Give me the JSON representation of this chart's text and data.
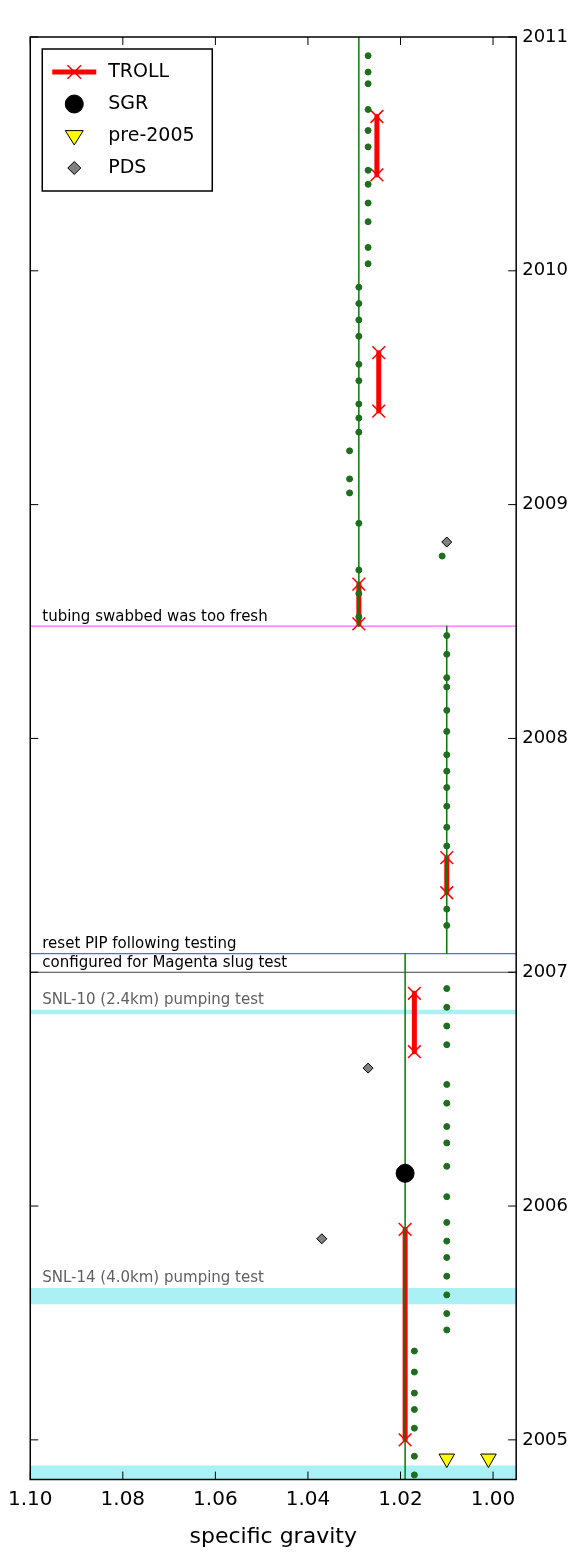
{
  "chart_data": {
    "type": "scatter",
    "xlabel": "specific gravity",
    "xlim": [
      1.1,
      0.995
    ],
    "ylim": [
      2004.83,
      2011
    ],
    "xticks": [
      {
        "value": 1.1,
        "label": "1.10"
      },
      1.08,
      1.06,
      1.04,
      1.02,
      {
        "value": 1,
        "label": "1.00"
      }
    ],
    "yticks": [
      2005,
      2006,
      2007,
      2008,
      2009,
      2010,
      2011
    ],
    "grid": false,
    "legend": "top left",
    "series": [
      {
        "type": "line",
        "color": "#008000",
        "marker": "none",
        "x": [
          1.019,
          1.019,
          null,
          1.01,
          1.01,
          null,
          1.029,
          1.029
        ],
        "values": [
          2004.83,
          2007.08,
          null,
          2007.08,
          2008.48,
          null,
          2008.48,
          2011
        ]
      },
      {
        "color": "#1e6e1e",
        "marker": "circle",
        "values": [
          2004.85,
          2004.93,
          2005.05,
          2005.13,
          2005.2,
          2005.29,
          2005.38,
          2005.47,
          2005.54,
          2005.62,
          2005.7,
          2005.78,
          2005.85,
          2005.93,
          2006.04,
          2006.17,
          2006.27,
          2006.34,
          2006.44,
          2006.52,
          2006.69,
          2006.77,
          2006.85,
          2006.93,
          2007.2,
          2007.27,
          2007.54,
          2007.62,
          2007.71,
          2007.79,
          2007.86,
          2007.93,
          2008.03,
          2008.12,
          2008.22,
          2008.26,
          2008.36,
          2008.44,
          2008.52,
          2008.62,
          2008.72,
          2008.78,
          2008.92,
          2009.05,
          2009.11,
          2009.23,
          2009.31,
          2009.37,
          2009.43,
          2009.53,
          2009.6,
          2009.72,
          2009.79,
          2009.86,
          2009.93,
          2010.03,
          2010.1,
          2010.21,
          2010.29,
          2010.37,
          2010.43,
          2010.53,
          2010.6,
          2010.69,
          2010.8,
          2010.85,
          2010.92
        ],
        "x": [
          1.017,
          1.017,
          1.017,
          1.017,
          1.017,
          1.017,
          1.017,
          1.01,
          1.01,
          1.01,
          1.01,
          1.01,
          1.01,
          1.01,
          1.01,
          1.01,
          1.01,
          1.01,
          1.01,
          1.01,
          1.01,
          1.01,
          1.01,
          1.01,
          1.01,
          1.01,
          1.01,
          1.01,
          1.01,
          1.01,
          1.01,
          1.01,
          1.01,
          1.01,
          1.01,
          1.01,
          1.01,
          1.01,
          1.029,
          1.029,
          1.029,
          1.011,
          1.029,
          1.031,
          1.031,
          1.031,
          1.029,
          1.029,
          1.029,
          1.029,
          1.029,
          1.029,
          1.029,
          1.029,
          1.029,
          1.027,
          1.027,
          1.027,
          1.027,
          1.027,
          1.027,
          1.027,
          1.027,
          1.027,
          1.027,
          1.027,
          1.027
        ]
      },
      {
        "name": "TROLL",
        "type": "line",
        "color": "#ff0000",
        "marker": "cross",
        "values": [
          2005.0,
          2005.9,
          null,
          2006.66,
          2006.91,
          null,
          2007.34,
          2007.49,
          null,
          2008.49,
          2008.66,
          null,
          2009.4,
          2009.65,
          null,
          2010.41,
          2010.66
        ],
        "x": [
          1.019,
          1.019,
          null,
          1.017,
          1.017,
          null,
          1.01,
          1.01,
          null,
          1.029,
          1.029,
          null,
          1.0247,
          1.0247,
          null,
          1.0251,
          1.0251
        ]
      },
      {
        "name": "SGR",
        "color": "#000000",
        "marker": "circle",
        "values": [
          2006.14
        ],
        "x": [
          1.019
        ]
      },
      {
        "name": "pre-2005",
        "color": "#ffff00",
        "marker": "triangle",
        "values": [
          2004.92,
          2004.92
        ],
        "x": [
          1.01,
          1.001
        ]
      },
      {
        "name": "PDS",
        "color": "#808080",
        "marker": "diamond",
        "values": [
          2005.86,
          2006.59,
          2008.84
        ],
        "x": [
          1.037,
          1.027,
          1.01
        ]
      }
    ],
    "ref_lines": [
      {
        "axis": "y",
        "value": 2007.0,
        "label": "configured for Magenta slug test",
        "color": "#404040"
      },
      {
        "axis": "y",
        "value": 2007.08,
        "label": "reset PIP following testing",
        "color": "#6060ff"
      },
      {
        "axis": "y",
        "value": 2008.48,
        "label": "tubing swabbed was too fresh",
        "color": "#ff66ff"
      }
    ],
    "bands": [
      {
        "axis": "y",
        "from": 2004.83,
        "to": 2004.89,
        "color": "#aaf0f4"
      },
      {
        "axis": "y",
        "from": 2005.58,
        "to": 2005.65,
        "label": "SNL-14 (4.0km) pumping test",
        "color": "#aaf0f4"
      },
      {
        "axis": "y",
        "from": 2006.82,
        "to": 2006.84,
        "label": "SNL-10 (2.4km) pumping test",
        "color": "#aaf0f4"
      }
    ]
  }
}
